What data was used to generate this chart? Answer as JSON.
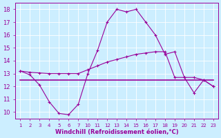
{
  "xlabel": "Windchill (Refroidissement éolien,°C)",
  "background_color": "#cceeff",
  "line_color": "#990099",
  "series1_x": [
    1,
    2,
    3,
    4,
    5,
    6,
    7,
    10,
    11,
    12,
    13,
    14,
    15,
    16,
    17,
    18,
    19,
    20,
    21,
    22,
    23
  ],
  "series1_y": [
    13.2,
    12.9,
    12.1,
    10.8,
    9.9,
    9.8,
    10.6,
    13.0,
    14.8,
    17.0,
    18.0,
    17.8,
    18.0,
    17.0,
    16.0,
    14.5,
    14.7,
    12.7,
    11.5,
    12.5,
    12.0
  ],
  "series2_x": [
    1,
    2,
    3,
    4,
    5,
    6,
    7,
    10,
    11,
    12,
    13,
    14,
    15,
    16,
    17,
    18,
    19,
    20,
    21,
    22,
    23
  ],
  "series2_y": [
    13.2,
    13.1,
    13.05,
    13.0,
    13.0,
    13.0,
    13.0,
    13.3,
    13.6,
    13.9,
    14.1,
    14.3,
    14.5,
    14.6,
    14.7,
    14.7,
    12.7,
    12.7,
    12.7,
    12.5,
    12.0
  ],
  "series3_x": [
    1,
    23
  ],
  "series3_y": [
    12.5,
    12.5
  ],
  "ylim": [
    9.5,
    18.5
  ],
  "yticks": [
    10,
    11,
    12,
    13,
    14,
    15,
    16,
    17,
    18
  ],
  "xlim": [
    0.5,
    23.5
  ],
  "xtick_positions": [
    1,
    2,
    3,
    4,
    5,
    6,
    7,
    10,
    11,
    12,
    13,
    14,
    15,
    16,
    17,
    18,
    19,
    20,
    21,
    22,
    23
  ],
  "xtick_labels": [
    "1",
    "2",
    "3",
    "4",
    "5",
    "6",
    "7",
    "10",
    "11",
    "12",
    "13",
    "14",
    "15",
    "16",
    "17",
    "18",
    "19",
    "20",
    "21",
    "22",
    "23"
  ]
}
